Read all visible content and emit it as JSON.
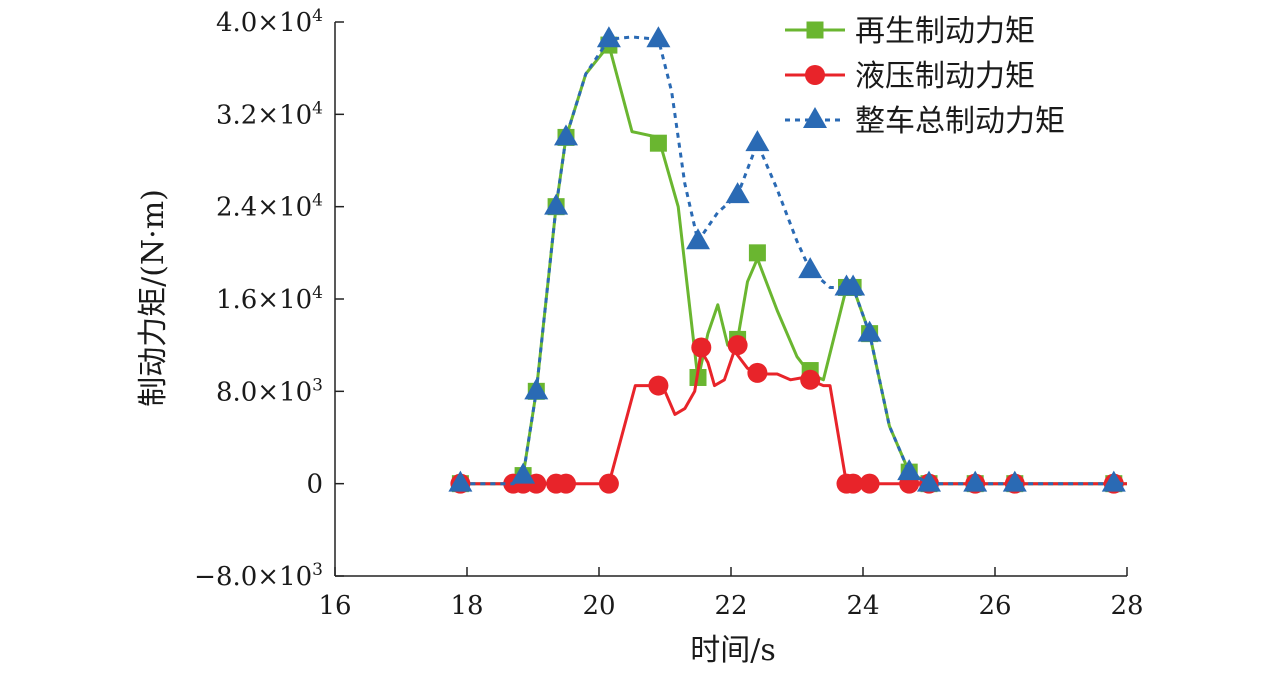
{
  "chart_data": {
    "type": "line",
    "title": "",
    "xlabel": "时间/s",
    "ylabel": "制动力矩/(N·m)",
    "xlim": [
      16,
      28
    ],
    "ylim": [
      -8000,
      40000
    ],
    "xticks": [
      16,
      18,
      20,
      22,
      24,
      26,
      28
    ],
    "xtick_labels": [
      "16",
      "18",
      "20",
      "22",
      "24",
      "26",
      "28"
    ],
    "yticks": [
      -8000,
      0,
      8000,
      16000,
      24000,
      32000,
      40000
    ],
    "ytick_labels": [
      {
        "mantissa": "−8.0×10",
        "exp": "3"
      },
      {
        "mantissa": "0",
        "exp": ""
      },
      {
        "mantissa": "8.0×10",
        "exp": "3"
      },
      {
        "mantissa": "1.6×10",
        "exp": "4"
      },
      {
        "mantissa": "2.4×10",
        "exp": "4"
      },
      {
        "mantissa": "3.2×10",
        "exp": "4"
      },
      {
        "mantissa": "4.0×10",
        "exp": "4"
      }
    ],
    "grid": false,
    "legend_position": "top-right",
    "series": [
      {
        "name": "再生制动力矩",
        "color": "#6ab630",
        "marker": "square",
        "line_style": "solid",
        "line": [
          [
            17.9,
            0
          ],
          [
            18.7,
            0
          ],
          [
            18.85,
            700
          ],
          [
            19.05,
            8000
          ],
          [
            19.35,
            24000
          ],
          [
            19.5,
            30000
          ],
          [
            19.8,
            35500
          ],
          [
            20.15,
            38000
          ],
          [
            20.5,
            30500
          ],
          [
            20.9,
            30000
          ],
          [
            21.2,
            24000
          ],
          [
            21.5,
            9000
          ],
          [
            21.65,
            13000
          ],
          [
            21.8,
            15500
          ],
          [
            21.95,
            12000
          ],
          [
            22.1,
            12500
          ],
          [
            22.25,
            17500
          ],
          [
            22.4,
            19500
          ],
          [
            22.7,
            15000
          ],
          [
            23.0,
            11000
          ],
          [
            23.2,
            9500
          ],
          [
            23.4,
            9000
          ],
          [
            23.75,
            17000
          ],
          [
            23.85,
            17000
          ],
          [
            24.1,
            13000
          ],
          [
            24.4,
            5000
          ],
          [
            24.7,
            1000
          ],
          [
            25.0,
            0
          ],
          [
            27.8,
            0
          ],
          [
            28.0,
            0
          ]
        ],
        "markers": [
          [
            17.9,
            0
          ],
          [
            18.85,
            700
          ],
          [
            19.05,
            8000
          ],
          [
            19.35,
            24000
          ],
          [
            19.5,
            30000
          ],
          [
            20.15,
            38000
          ],
          [
            20.9,
            29500
          ],
          [
            21.5,
            9200
          ],
          [
            22.1,
            12500
          ],
          [
            22.4,
            20000
          ],
          [
            23.2,
            9800
          ],
          [
            23.75,
            17000
          ],
          [
            23.85,
            17000
          ],
          [
            24.1,
            13000
          ],
          [
            24.7,
            1000
          ],
          [
            25.0,
            0
          ],
          [
            25.7,
            0
          ],
          [
            26.3,
            0
          ],
          [
            27.8,
            0
          ]
        ]
      },
      {
        "name": "液压制动力矩",
        "color": "#e8242a",
        "marker": "circle",
        "line_style": "solid",
        "line": [
          [
            17.9,
            0
          ],
          [
            20.15,
            0
          ],
          [
            20.55,
            8500
          ],
          [
            20.85,
            8500
          ],
          [
            21.0,
            8000
          ],
          [
            21.15,
            6000
          ],
          [
            21.3,
            6500
          ],
          [
            21.45,
            8000
          ],
          [
            21.55,
            11500
          ],
          [
            21.65,
            10500
          ],
          [
            21.75,
            8500
          ],
          [
            21.9,
            9000
          ],
          [
            22.05,
            11500
          ],
          [
            22.25,
            10000
          ],
          [
            22.5,
            9500
          ],
          [
            22.7,
            9500
          ],
          [
            22.9,
            9000
          ],
          [
            23.1,
            9200
          ],
          [
            23.4,
            8500
          ],
          [
            23.5,
            8500
          ],
          [
            23.75,
            0
          ],
          [
            27.8,
            0
          ],
          [
            28.0,
            0
          ]
        ],
        "markers": [
          [
            17.9,
            0
          ],
          [
            18.7,
            0
          ],
          [
            18.85,
            0
          ],
          [
            19.05,
            0
          ],
          [
            19.35,
            0
          ],
          [
            19.5,
            0
          ],
          [
            20.15,
            0
          ],
          [
            20.9,
            8500
          ],
          [
            21.55,
            11800
          ],
          [
            22.1,
            12000
          ],
          [
            22.4,
            9600
          ],
          [
            23.2,
            9000
          ],
          [
            23.75,
            0
          ],
          [
            23.85,
            0
          ],
          [
            24.1,
            0
          ],
          [
            24.7,
            0
          ],
          [
            25.0,
            0
          ],
          [
            25.7,
            0
          ],
          [
            26.3,
            0
          ],
          [
            27.8,
            0
          ]
        ]
      },
      {
        "name": "整车总制动力矩",
        "color": "#2a6ab4",
        "marker": "triangle",
        "line_style": "dotted",
        "line": [
          [
            17.9,
            0
          ],
          [
            18.7,
            0
          ],
          [
            18.85,
            700
          ],
          [
            19.05,
            8000
          ],
          [
            19.35,
            24000
          ],
          [
            19.5,
            30000
          ],
          [
            19.8,
            35500
          ],
          [
            20.15,
            38500
          ],
          [
            20.5,
            38700
          ],
          [
            20.9,
            38500
          ],
          [
            21.1,
            34000
          ],
          [
            21.3,
            26000
          ],
          [
            21.5,
            21000
          ],
          [
            21.8,
            23500
          ],
          [
            22.1,
            25000
          ],
          [
            22.4,
            29500
          ],
          [
            22.7,
            25500
          ],
          [
            23.0,
            21000
          ],
          [
            23.2,
            18500
          ],
          [
            23.5,
            17000
          ],
          [
            23.75,
            17000
          ],
          [
            23.85,
            17000
          ],
          [
            24.1,
            13000
          ],
          [
            24.4,
            5000
          ],
          [
            24.7,
            1000
          ],
          [
            25.0,
            0
          ],
          [
            27.8,
            0
          ],
          [
            28.0,
            0
          ]
        ],
        "markers": [
          [
            17.9,
            0
          ],
          [
            18.85,
            700
          ],
          [
            19.05,
            8000
          ],
          [
            19.35,
            24000
          ],
          [
            19.5,
            30000
          ],
          [
            20.15,
            38500
          ],
          [
            20.9,
            38500
          ],
          [
            21.5,
            21000
          ],
          [
            22.1,
            25000
          ],
          [
            22.4,
            29500
          ],
          [
            23.2,
            18500
          ],
          [
            23.75,
            17000
          ],
          [
            23.85,
            17000
          ],
          [
            24.1,
            13000
          ],
          [
            24.7,
            1000
          ],
          [
            25.0,
            0
          ],
          [
            25.7,
            0
          ],
          [
            26.3,
            0
          ],
          [
            27.8,
            0
          ]
        ]
      }
    ]
  }
}
